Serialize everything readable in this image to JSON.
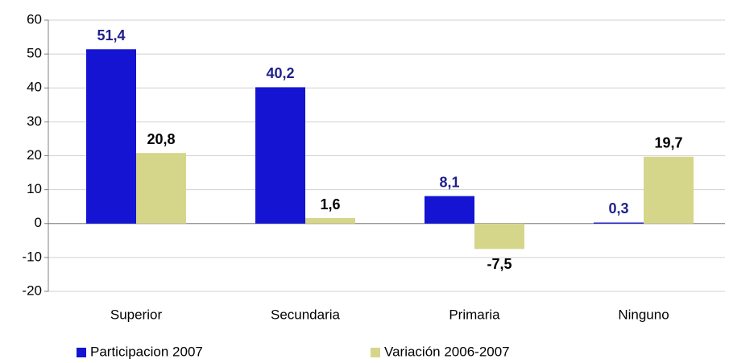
{
  "chart_data": {
    "type": "bar",
    "categories": [
      "Superior",
      "Secundaria",
      "Primaria",
      "Ninguno"
    ],
    "series": [
      {
        "name": "Participacion 2007",
        "color": "#1414d2",
        "label_color": "#1f1f8c",
        "values": [
          51.4,
          40.2,
          8.1,
          0.3
        ],
        "value_labels": [
          "51,4",
          "40,2",
          "8,1",
          "0,3"
        ]
      },
      {
        "name": "Variación 2006-2007",
        "color": "#d6d68a",
        "label_color": "#000000",
        "values": [
          20.8,
          1.6,
          -7.5,
          19.7
        ],
        "value_labels": [
          "20,8",
          "1,6",
          "-7,5",
          "19,7"
        ]
      }
    ],
    "ylim": [
      -20,
      60
    ],
    "yticks": [
      -20,
      -10,
      0,
      10,
      20,
      30,
      40,
      50,
      60
    ],
    "grid": true,
    "legend": "bottom"
  }
}
